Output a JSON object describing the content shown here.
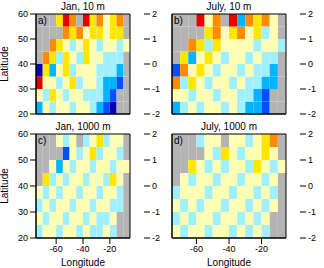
{
  "chart_data": [
    {
      "type": "heatmap",
      "title": "Jan, 10 m",
      "annotations": [
        "a)"
      ],
      "ylabel": "Latitude",
      "xlim": [
        -75,
        -5
      ],
      "ylim": [
        20,
        60
      ],
      "xticks": [
        -60,
        -40,
        -20
      ],
      "yticks": [
        20,
        30,
        40,
        50,
        60
      ],
      "tick_labels": "y",
      "x_edges": [
        -75,
        -70,
        -65,
        -60,
        -55,
        -50,
        -45,
        -40,
        -35,
        -30,
        -25,
        -20,
        -15,
        -10,
        -5
      ],
      "y_edges": [
        20,
        25,
        30,
        35,
        40,
        45,
        50,
        55,
        60
      ],
      "values": [
        [
          -0.6,
          0.2,
          -0.3,
          0.1,
          0.3,
          -0.2,
          0.4,
          0.1,
          -0.4,
          -0.7,
          -1.2,
          -1.6,
          null,
          null
        ],
        [
          0.3,
          -0.2,
          0.5,
          0.2,
          -0.1,
          0.3,
          0.1,
          -0.3,
          -0.2,
          -0.5,
          -0.9,
          -1.3,
          null,
          null
        ],
        [
          1.6,
          0.4,
          0.3,
          -0.4,
          0.2,
          0.6,
          -0.1,
          0.2,
          0.3,
          -0.2,
          -0.6,
          -0.8,
          -1.1,
          null
        ],
        [
          -1.8,
          0.9,
          -0.6,
          0.3,
          0.5,
          -0.2,
          0.4,
          0.1,
          0.3,
          -0.3,
          -0.4,
          -0.2,
          -0.7,
          null
        ],
        [
          null,
          1.3,
          0.7,
          -0.4,
          0.6,
          0.2,
          -0.3,
          0.5,
          0.2,
          0.1,
          -0.2,
          -0.3,
          -0.1,
          null
        ],
        [
          null,
          null,
          1.1,
          0.8,
          0.3,
          -0.2,
          0.4,
          0.6,
          0.1,
          -0.3,
          0.2,
          0.4,
          -0.2,
          0.3
        ],
        [
          null,
          null,
          null,
          null,
          1.4,
          0.7,
          1.2,
          0.3,
          0.5,
          0.8,
          0.2,
          0.6,
          0.9,
          null
        ],
        [
          null,
          null,
          null,
          0.6,
          1.7,
          1.3,
          null,
          1.9,
          0.7,
          1.4,
          0.3,
          0.9,
          1.1,
          null
        ]
      ],
      "colorbar": {
        "range": [
          -2,
          2
        ],
        "ticks": [
          -2,
          -1,
          0,
          1,
          2
        ],
        "colors": [
          "#0000b4",
          "#0050ff",
          "#00b4ff",
          "#a0f0ff",
          "#ffffb4",
          "#ffe600",
          "#ff8c00",
          "#e60000"
        ]
      }
    },
    {
      "type": "heatmap",
      "title": "July, 10 m",
      "annotations": [
        "b)"
      ],
      "xlim": [
        -75,
        -5
      ],
      "ylim": [
        20,
        60
      ],
      "xticks": [
        -60,
        -40,
        -20
      ],
      "yticks": [
        20,
        30,
        40,
        50,
        60
      ],
      "tick_labels": false,
      "x_edges": [
        -75,
        -70,
        -65,
        -60,
        -55,
        -50,
        -45,
        -40,
        -35,
        -30,
        -25,
        -20,
        -15,
        -10,
        -5
      ],
      "y_edges": [
        20,
        25,
        30,
        35,
        40,
        45,
        50,
        55,
        60
      ],
      "values": [
        [
          -0.8,
          -0.3,
          0.2,
          -0.1,
          0.3,
          0.1,
          -0.2,
          0.2,
          -0.3,
          -0.6,
          -1.0,
          -1.4,
          null,
          null
        ],
        [
          0.2,
          0.4,
          -0.2,
          0.3,
          0.1,
          -0.3,
          0.2,
          0.0,
          -0.2,
          -0.4,
          -0.7,
          -1.1,
          null,
          null
        ],
        [
          1.2,
          -0.4,
          0.6,
          0.2,
          -0.3,
          0.4,
          0.1,
          -0.2,
          0.3,
          -0.3,
          -0.5,
          -0.7,
          -0.9,
          null
        ],
        [
          -1.5,
          1.1,
          0.3,
          0.5,
          0.2,
          -0.1,
          0.3,
          0.2,
          -0.1,
          0.2,
          -0.3,
          -0.4,
          -0.6,
          null
        ],
        [
          null,
          0.8,
          -0.9,
          0.4,
          0.7,
          0.3,
          -0.2,
          0.4,
          0.3,
          -0.1,
          0.1,
          -0.2,
          -0.3,
          null
        ],
        [
          null,
          null,
          1.3,
          0.6,
          -0.5,
          0.5,
          0.2,
          0.3,
          0.1,
          0.4,
          -0.2,
          0.2,
          0.1,
          -0.4
        ],
        [
          null,
          null,
          null,
          null,
          0.9,
          1.4,
          0.2,
          0.6,
          1.1,
          0.3,
          0.7,
          -0.3,
          0.4,
          null
        ],
        [
          null,
          null,
          null,
          1.6,
          0.4,
          1.2,
          null,
          1.5,
          -0.6,
          1.0,
          0.5,
          1.3,
          0.2,
          null
        ]
      ],
      "colorbar": {
        "range": [
          -2,
          2
        ],
        "ticks": [
          -2,
          -1,
          0,
          1,
          2
        ],
        "colors": [
          "#0000b4",
          "#0050ff",
          "#00b4ff",
          "#a0f0ff",
          "#ffffb4",
          "#ffe600",
          "#ff8c00",
          "#e60000"
        ]
      }
    },
    {
      "type": "heatmap",
      "title": "Jan, 1000 m",
      "annotations": [
        "c)"
      ],
      "xlabel": "Longitude",
      "ylabel": "Latitude",
      "xlim": [
        -75,
        -5
      ],
      "ylim": [
        20,
        60
      ],
      "xticks": [
        -60,
        -40,
        -20
      ],
      "yticks": [
        20,
        30,
        40,
        50,
        60
      ],
      "tick_labels": true,
      "x_edges": [
        -75,
        -70,
        -65,
        -60,
        -55,
        -50,
        -45,
        -40,
        -35,
        -30,
        -25,
        -20,
        -15,
        -10,
        -5
      ],
      "y_edges": [
        20,
        25,
        30,
        35,
        40,
        45,
        50,
        55,
        60
      ],
      "values": [
        [
          -0.3,
          0.2,
          0.1,
          -0.2,
          0.0,
          0.3,
          -0.1,
          0.2,
          -0.3,
          -0.1,
          0.2,
          -0.4,
          null,
          null
        ],
        [
          0.1,
          -0.4,
          0.3,
          0.1,
          -0.2,
          0.1,
          0.4,
          -0.1,
          0.2,
          -0.3,
          -0.2,
          0.1,
          null,
          null
        ],
        [
          -0.5,
          0.3,
          -0.1,
          0.2,
          0.4,
          -0.3,
          0.1,
          0.2,
          -0.2,
          0.3,
          0.1,
          -0.3,
          -0.2,
          null
        ],
        [
          0.4,
          -0.2,
          0.3,
          -0.4,
          0.1,
          0.2,
          -0.1,
          0.3,
          0.1,
          -0.2,
          0.3,
          0.2,
          -0.5,
          null
        ],
        [
          null,
          0.5,
          -0.3,
          0.2,
          -0.1,
          0.4,
          0.3,
          -0.3,
          0.2,
          0.1,
          -0.4,
          0.6,
          0.2,
          null
        ],
        [
          null,
          null,
          0.3,
          -0.6,
          0.2,
          -0.2,
          0.1,
          0.4,
          -0.3,
          0.2,
          0.3,
          -0.1,
          0.4,
          0.1
        ],
        [
          null,
          null,
          null,
          null,
          -1.1,
          0.3,
          -0.4,
          0.2,
          0.5,
          -0.2,
          0.1,
          0.3,
          -0.3,
          null
        ],
        [
          null,
          null,
          null,
          0.2,
          -0.5,
          0.4,
          null,
          -0.3,
          0.2,
          0.6,
          -0.4,
          0.1,
          0.3,
          null
        ]
      ],
      "colorbar": {
        "range": [
          -2,
          2
        ],
        "ticks": [
          -2,
          -1,
          0,
          1,
          2
        ],
        "colors": [
          "#0000b4",
          "#0050ff",
          "#00b4ff",
          "#a0f0ff",
          "#ffffb4",
          "#ffe600",
          "#ff8c00",
          "#e60000"
        ]
      }
    },
    {
      "type": "heatmap",
      "title": "July, 1000 m",
      "annotations": [
        "d)"
      ],
      "xlabel": "Longitude",
      "xlim": [
        -75,
        -5
      ],
      "ylim": [
        20,
        60
      ],
      "xticks": [
        -60,
        -40,
        -20
      ],
      "yticks": [
        20,
        30,
        40,
        50,
        60
      ],
      "tick_labels": "x",
      "x_edges": [
        -75,
        -70,
        -65,
        -60,
        -55,
        -50,
        -45,
        -40,
        -35,
        -30,
        -25,
        -20,
        -15,
        -10,
        -5
      ],
      "y_edges": [
        20,
        25,
        30,
        35,
        40,
        45,
        50,
        55,
        60
      ],
      "values": [
        [
          0.2,
          -0.3,
          0.1,
          0.3,
          -0.2,
          0.1,
          0.2,
          -0.1,
          0.3,
          -0.2,
          0.1,
          -0.3,
          null,
          null
        ],
        [
          -0.2,
          0.3,
          -0.1,
          0.2,
          0.1,
          -0.3,
          0.2,
          0.3,
          -0.1,
          0.2,
          -0.2,
          0.1,
          null,
          null
        ],
        [
          0.4,
          -0.1,
          0.2,
          -0.3,
          0.3,
          0.1,
          -0.2,
          0.1,
          0.2,
          -0.1,
          0.3,
          -0.4,
          0.2,
          null
        ],
        [
          -0.3,
          0.2,
          0.4,
          0.1,
          -0.2,
          0.3,
          0.1,
          -0.3,
          0.2,
          0.4,
          -0.1,
          0.2,
          -0.2,
          null
        ],
        [
          null,
          0.3,
          -0.2,
          0.3,
          0.2,
          -0.1,
          0.4,
          0.2,
          -0.2,
          0.1,
          0.3,
          -0.3,
          0.1,
          null
        ],
        [
          null,
          null,
          0.5,
          0.2,
          -0.4,
          0.3,
          -0.1,
          0.2,
          0.4,
          -0.3,
          0.6,
          0.2,
          -0.1,
          0.3
        ],
        [
          null,
          null,
          null,
          null,
          0.3,
          -0.2,
          0.5,
          0.1,
          -0.3,
          0.2,
          0.4,
          0.9,
          0.3,
          null
        ],
        [
          null,
          null,
          null,
          -0.3,
          0.4,
          0.2,
          null,
          0.3,
          0.1,
          -0.4,
          0.2,
          0.5,
          1.1,
          null
        ]
      ],
      "colorbar": {
        "range": [
          -2,
          2
        ],
        "ticks": [
          -2,
          -1,
          0,
          1,
          2
        ],
        "colors": [
          "#0000b4",
          "#0050ff",
          "#00b4ff",
          "#a0f0ff",
          "#ffffb4",
          "#ffe600",
          "#ff8c00",
          "#e60000"
        ]
      }
    }
  ]
}
